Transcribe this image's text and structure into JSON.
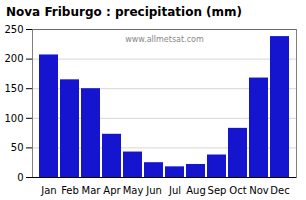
{
  "chart_data": {
    "type": "bar",
    "title": "Nova Friburgo : precipitation (mm)",
    "categories": [
      "Jan",
      "Feb",
      "Mar",
      "Apr",
      "May",
      "Jun",
      "Jul",
      "Aug",
      "Sep",
      "Oct",
      "Nov",
      "Dec"
    ],
    "values": [
      207,
      165,
      150,
      73,
      43,
      25,
      18,
      22,
      38,
      83,
      168,
      238
    ],
    "color": "#1515d0",
    "ylim": [
      0,
      250
    ],
    "yticks": [
      0,
      50,
      100,
      150,
      200,
      250
    ],
    "grid": true,
    "annotations": [
      "www.allmetsat.com"
    ]
  }
}
